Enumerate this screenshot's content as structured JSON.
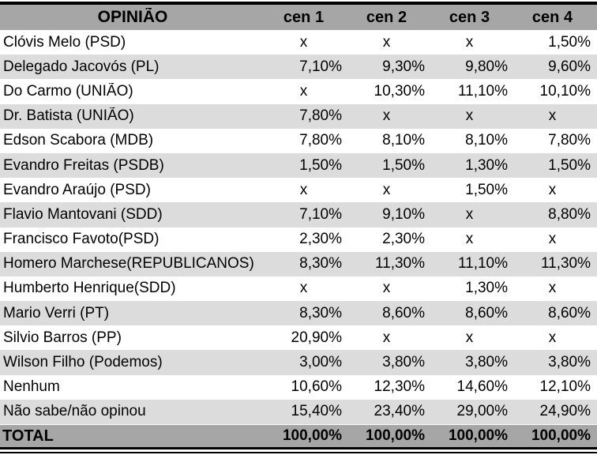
{
  "chart_data": {
    "type": "table",
    "title": "OPINIÃO",
    "columns": [
      "OPINIÃO",
      "cen 1",
      "cen 2",
      "cen 3",
      "cen 4"
    ],
    "rows": [
      {
        "label": "Clóvis Melo (PSD)",
        "values": [
          "x",
          "x",
          "x",
          "1,50%"
        ]
      },
      {
        "label": "Delegado Jacovós (PL)",
        "values": [
          "7,10%",
          "9,30%",
          "9,80%",
          "9,60%"
        ]
      },
      {
        "label": "Do Carmo (UNIÃO)",
        "values": [
          "x",
          "10,30%",
          "11,10%",
          "10,10%"
        ]
      },
      {
        "label": "Dr. Batista (UNIÃO)",
        "values": [
          "7,80%",
          "x",
          "x",
          "x"
        ]
      },
      {
        "label": "Edson Scabora (MDB)",
        "values": [
          "7,80%",
          "8,10%",
          "8,10%",
          "7,80%"
        ]
      },
      {
        "label": "Evandro Freitas (PSDB)",
        "values": [
          "1,50%",
          "1,50%",
          "1,30%",
          "1,50%"
        ]
      },
      {
        "label": "Evandro Araújo (PSD)",
        "values": [
          "x",
          "x",
          "1,50%",
          "x"
        ]
      },
      {
        "label": "Flavio Mantovani (SDD)",
        "values": [
          "7,10%",
          "9,10%",
          "x",
          "8,80%"
        ]
      },
      {
        "label": "Francisco Favoto(PSD)",
        "values": [
          "2,30%",
          "2,30%",
          "x",
          "x"
        ]
      },
      {
        "label": "Homero Marchese(REPUBLICANOS)",
        "values": [
          "8,30%",
          "11,30%",
          "11,10%",
          "11,30%"
        ]
      },
      {
        "label": "Humberto Henrique(SDD)",
        "values": [
          "x",
          "x",
          "1,30%",
          "x"
        ]
      },
      {
        "label": "Mario Verri (PT)",
        "values": [
          "8,30%",
          "8,60%",
          "8,60%",
          "8,60%"
        ]
      },
      {
        "label": "Silvio Barros (PP)",
        "values": [
          "20,90%",
          "x",
          "x",
          "x"
        ]
      },
      {
        "label": "Wilson Filho (Podemos)",
        "values": [
          "3,00%",
          "3,80%",
          "3,80%",
          "3,80%"
        ]
      },
      {
        "label": "Nenhum",
        "values": [
          "10,60%",
          "12,30%",
          "14,60%",
          "12,10%"
        ]
      },
      {
        "label": "Não sabe/não opinou",
        "values": [
          "15,40%",
          "23,40%",
          "29,00%",
          "24,90%"
        ]
      }
    ],
    "total_row": {
      "label": "TOTAL",
      "values": [
        "100,00%",
        "100,00%",
        "100,00%",
        "100,00%"
      ]
    }
  },
  "colors": {
    "header_bg": "#a6a6a6",
    "total_bg": "#a6a6a6",
    "row_bg": "#ffffff",
    "row_alt_bg": "#dcdcdc",
    "border": "#000000",
    "text": "#000000"
  }
}
